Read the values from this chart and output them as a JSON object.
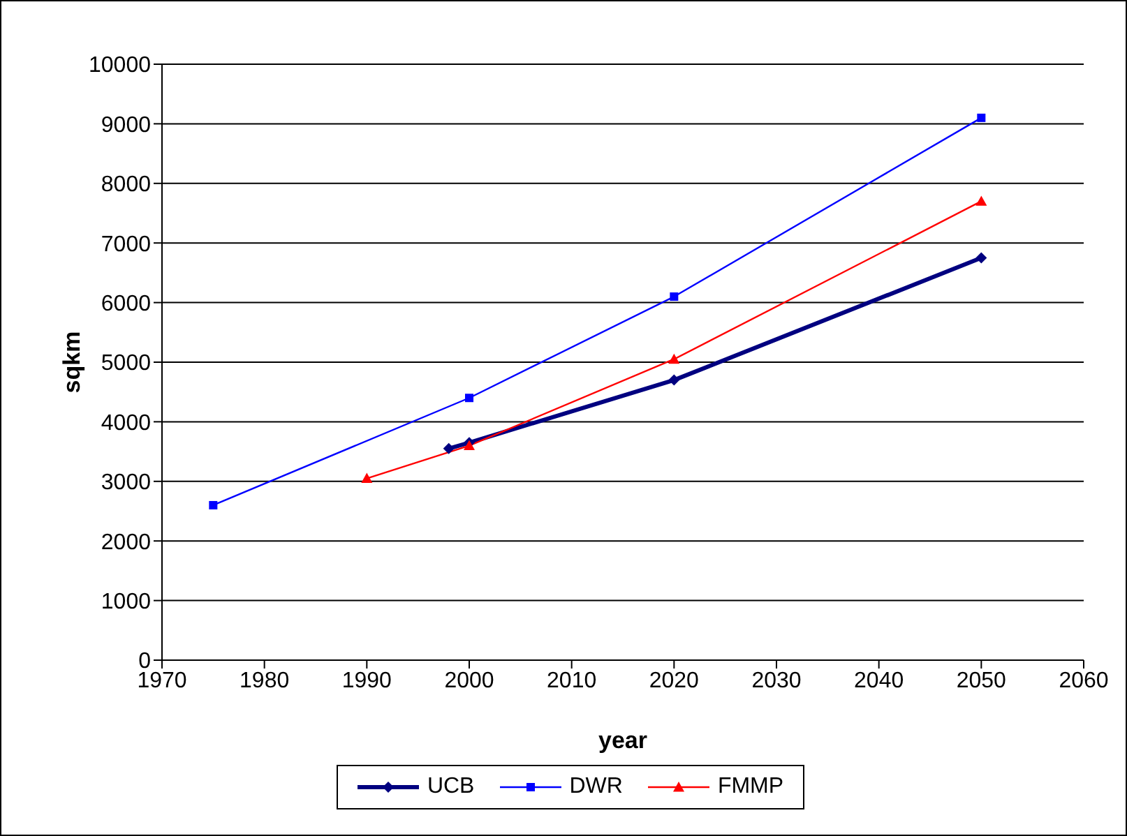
{
  "chart_data": {
    "type": "line",
    "xlabel": "year",
    "ylabel": "sqkm",
    "xlim": [
      1970,
      2060
    ],
    "xticks": [
      1970,
      1980,
      1990,
      2000,
      2010,
      2020,
      2030,
      2040,
      2050,
      2060
    ],
    "ylim": [
      0,
      10000
    ],
    "yticks": [
      0,
      1000,
      2000,
      3000,
      4000,
      5000,
      6000,
      7000,
      8000,
      9000,
      10000
    ],
    "grid": "y",
    "legend": "bottom",
    "series": [
      {
        "name": "UCB",
        "color": "#000080",
        "marker": "diamond",
        "x": [
          1998,
          2000,
          2020,
          2050
        ],
        "values": [
          3550,
          3650,
          4700,
          6750
        ]
      },
      {
        "name": "DWR",
        "color": "#0000ff",
        "marker": "square",
        "x": [
          1975,
          2000,
          2020,
          2050
        ],
        "values": [
          2600,
          4400,
          6100,
          9100
        ]
      },
      {
        "name": "FMMP",
        "color": "#ff0000",
        "marker": "triangle",
        "x": [
          1990,
          2000,
          2020,
          2050
        ],
        "values": [
          3050,
          3600,
          5050,
          7700
        ]
      }
    ]
  }
}
